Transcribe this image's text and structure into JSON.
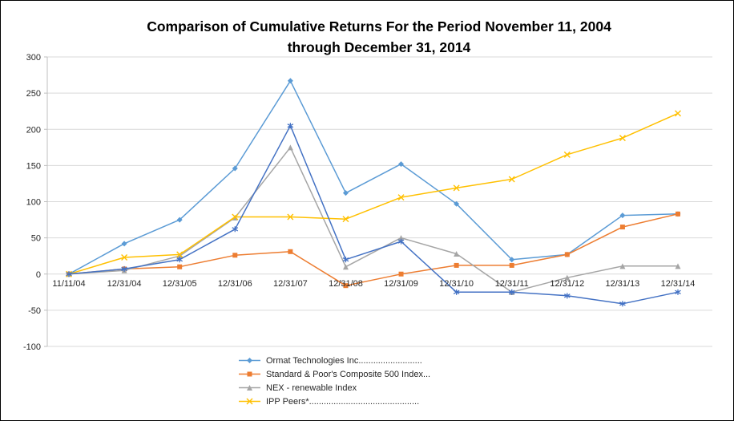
{
  "chart_data": {
    "type": "line",
    "title_line1": "Comparison of Cumulative Returns For the Period November 11, 2004",
    "title_line2": "through December 31, 2014",
    "categories": [
      "11/11/04",
      "12/31/04",
      "12/31/05",
      "12/31/06",
      "12/31/07",
      "12/31/08",
      "12/31/09",
      "12/31/10",
      "12/31/11",
      "12/31/12",
      "12/31/13",
      "12/31/14"
    ],
    "ylim": [
      -100,
      300
    ],
    "y_ticks": [
      300,
      250,
      200,
      150,
      100,
      50,
      0,
      -50,
      -100
    ],
    "grid": true,
    "legend_position": "bottom-left",
    "axis_text_color": "#262626",
    "gridline_color": "#d9d9d9",
    "axis_line_color": "#bfbfbf",
    "series": [
      {
        "name": "Ormat Technologies Inc..........................",
        "color": "#5B9BD5",
        "marker": "diamond",
        "in_legend": true,
        "values": [
          0,
          42,
          75,
          146,
          267,
          112,
          152,
          97,
          20,
          27,
          81,
          83
        ]
      },
      {
        "name": "Standard & Poor's Composite 500 Index...",
        "color": "#ED7D31",
        "marker": "square",
        "in_legend": true,
        "values": [
          0,
          7,
          10,
          26,
          31,
          -16,
          0,
          12,
          12,
          27,
          65,
          83
        ]
      },
      {
        "name": "NEX - renewable Index",
        "color": "#A5A5A5",
        "marker": "triangle",
        "in_legend": true,
        "values": [
          0,
          5,
          25,
          78,
          175,
          10,
          50,
          28,
          -25,
          -5,
          11,
          11
        ]
      },
      {
        "name": "IPP Peers*.............................................",
        "color": "#FFC000",
        "marker": "x",
        "in_legend": true,
        "values": [
          0,
          23,
          27,
          79,
          79,
          76,
          106,
          119,
          131,
          165,
          188,
          222
        ]
      },
      {
        "name": "",
        "color": "#4472C4",
        "marker": "asterisk",
        "in_legend": false,
        "values": [
          0,
          7,
          20,
          62,
          205,
          20,
          45,
          -25,
          -25,
          -30,
          -41,
          -25
        ]
      }
    ]
  }
}
